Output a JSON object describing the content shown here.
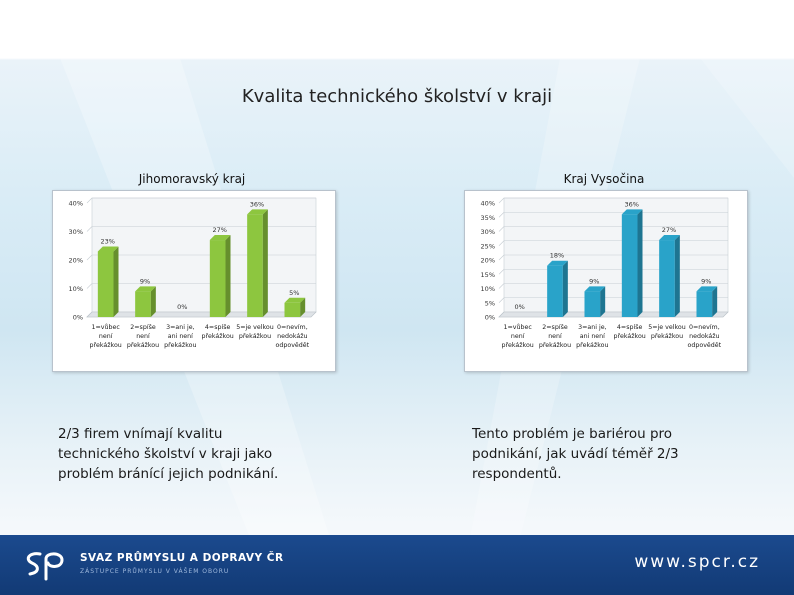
{
  "slide_title": "Kvalita technického školství v kraji",
  "chart_data": [
    {
      "type": "bar",
      "title": "Jihomoravský kraj",
      "categories": [
        [
          "1=vůbec",
          "není",
          "překážkou"
        ],
        [
          "2=spíše",
          "není",
          "překážkou"
        ],
        [
          "3=ani je,",
          "ani není",
          "překážkou"
        ],
        [
          "4=spíše",
          "překážkou"
        ],
        [
          "5=je velkou",
          "překážkou"
        ],
        [
          "0=nevím,",
          "nedokážu",
          "odpovědět"
        ]
      ],
      "values": [
        23,
        9,
        0,
        27,
        36,
        5
      ],
      "value_labels": [
        "23%",
        "9%",
        "0%",
        "27%",
        "36%",
        "5%"
      ],
      "ylim": [
        0,
        40
      ],
      "yticks": [
        0,
        10,
        20,
        30,
        40
      ],
      "ytick_labels": [
        "0%",
        "10%",
        "20%",
        "30%",
        "40%"
      ],
      "grid": true,
      "color": "#8dc63f"
    },
    {
      "type": "bar",
      "title": "Kraj Vysočina",
      "categories": [
        [
          "1=vůbec",
          "není",
          "překážkou"
        ],
        [
          "2=spíše",
          "není",
          "překážkou"
        ],
        [
          "3=ani je,",
          "ani není",
          "překážkou"
        ],
        [
          "4=spíše",
          "překážkou"
        ],
        [
          "5=je velkou",
          "překážkou"
        ],
        [
          "0=nevím,",
          "nedokážu",
          "odpovědět"
        ]
      ],
      "values": [
        0,
        18,
        9,
        36,
        27,
        9
      ],
      "value_labels": [
        "0%",
        "18%",
        "9%",
        "36%",
        "27%",
        "9%"
      ],
      "ylim": [
        0,
        40
      ],
      "yticks": [
        0,
        5,
        10,
        15,
        20,
        25,
        30,
        35,
        40
      ],
      "ytick_labels": [
        "0%",
        "5%",
        "10%",
        "15%",
        "20%",
        "25%",
        "30%",
        "35%",
        "40%"
      ],
      "grid": true,
      "color": "#29a3c9"
    }
  ],
  "captions": {
    "left": [
      "2/3 firem vnímají kvalitu",
      "technického školství v kraji jako",
      "problém brání­cí jejich podnikání."
    ],
    "right": [
      "Tento problém je bariérou pro",
      "podnikání, jak uvádí téměř 2/3",
      "respondentů."
    ]
  },
  "footer": {
    "logo_text": "SP",
    "org_name": "SVAZ PRŮMYSLU A DOPRAVY ČR",
    "org_tagline": "ZÁSTUPCE PRŮMYSLU V VÁŠEM OBORU",
    "website": "www.spcr.cz",
    "colors": {
      "background": "#1b4a8e",
      "text": "#ffffff"
    }
  }
}
